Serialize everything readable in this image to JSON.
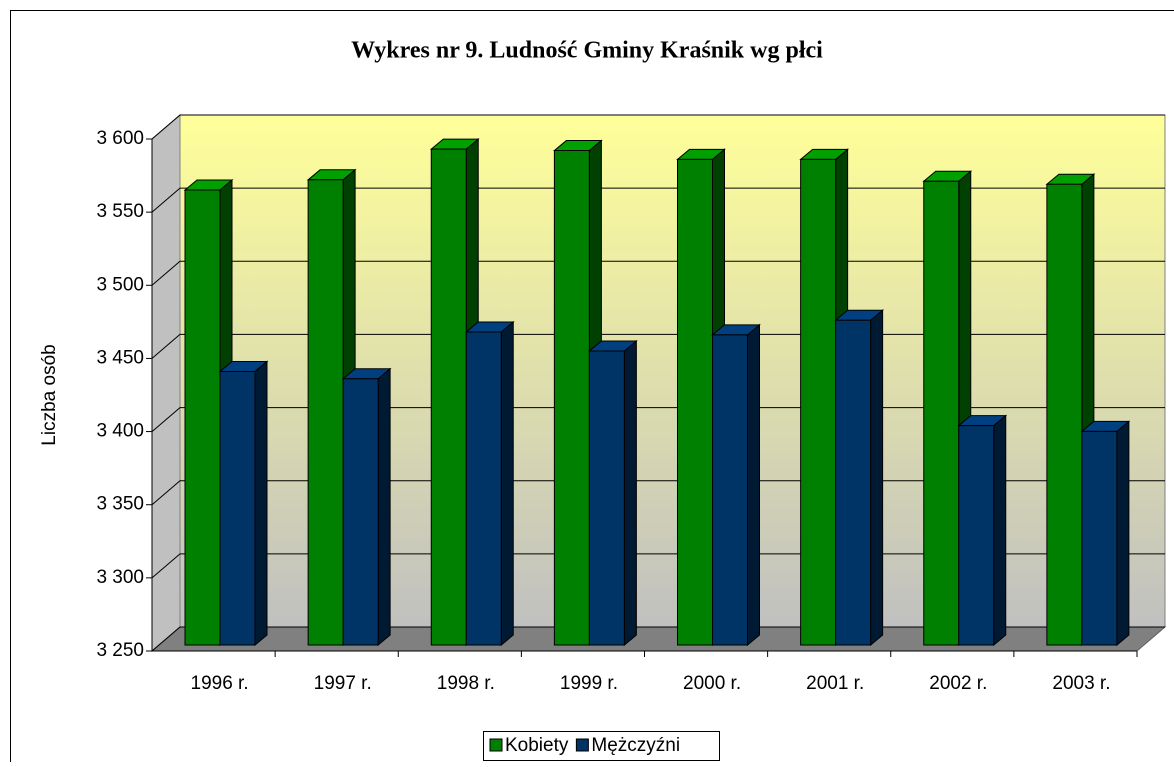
{
  "chart_data": {
    "type": "bar3d",
    "title": "Wykres nr 9. Ludność Gminy Kraśnik wg płci",
    "ylabel": "Liczba osób",
    "categories": [
      "1996 r.",
      "1997 r.",
      "1998 r.",
      "1999 r.",
      "2000 r.",
      "2001 r.",
      "2002 r.",
      "2003 r."
    ],
    "series": [
      {
        "name": "Kobiety",
        "color": "#008000",
        "values": [
          3561,
          3568,
          3589,
          3588,
          3582,
          3582,
          3567,
          3565
        ]
      },
      {
        "name": "Mężczyźni",
        "color": "#003366",
        "values": [
          3437,
          3432,
          3464,
          3451,
          3462,
          3472,
          3400,
          3396
        ]
      }
    ],
    "ylim": [
      3250,
      3600
    ],
    "yticks": [
      {
        "value": 3250,
        "label": "3 250"
      },
      {
        "value": 3300,
        "label": "3 300"
      },
      {
        "value": 3350,
        "label": "3 350"
      },
      {
        "value": 3400,
        "label": "3 400"
      },
      {
        "value": 3450,
        "label": "3 450"
      },
      {
        "value": 3500,
        "label": "3 500"
      },
      {
        "value": 3550,
        "label": "3 550"
      },
      {
        "value": 3600,
        "label": "3 600"
      }
    ],
    "grid": true,
    "legend": "bottom"
  }
}
